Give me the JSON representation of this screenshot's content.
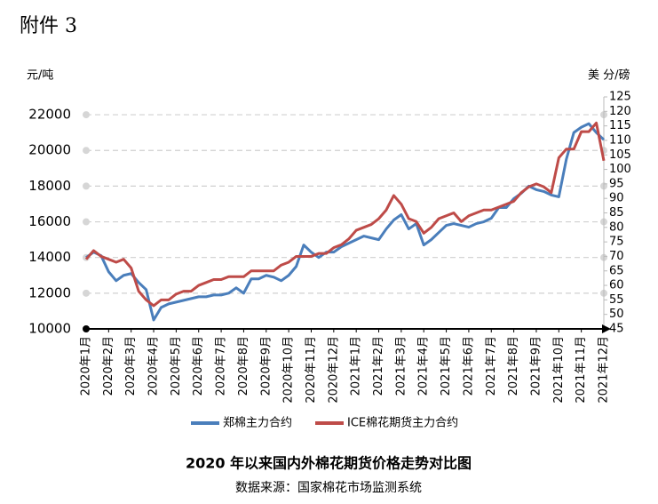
{
  "header": "附件 3",
  "chart_data": {
    "type": "line",
    "title": "2020 年以来国内外棉花期货价格走势对比图",
    "source": "数据来源：国家棉花市场监测系统",
    "y_label": "元/吨",
    "y2_label": "美 分/磅",
    "categories": [
      "2020年1月",
      null,
      null,
      "2020年2月",
      null,
      null,
      "2020年3月",
      null,
      null,
      "2020年4月",
      null,
      null,
      "2020年5月",
      null,
      null,
      "2020年6月",
      null,
      null,
      "2020年7月",
      null,
      null,
      "2020年8月",
      null,
      null,
      "2020年9月",
      null,
      null,
      "2020年10月",
      null,
      null,
      "2020年11月",
      null,
      null,
      "2020年12月",
      null,
      null,
      "2021年1月",
      null,
      null,
      "2021年2月",
      null,
      null,
      "2021年3月",
      null,
      null,
      "2021年4月",
      null,
      null,
      "2021年5月",
      null,
      null,
      "2021年6月",
      null,
      null,
      "2021年7月",
      null,
      null,
      "2021年8月",
      null,
      null,
      "2021年9月",
      null,
      null,
      "2021年10月",
      null,
      null,
      "2021年11月",
      null,
      null,
      "2021年12月"
    ],
    "series": [
      {
        "name": "郑棉主力合约",
        "color": "#4a7ebb",
        "values": [
          14000,
          14300,
          14100,
          13200,
          12700,
          13000,
          13100,
          12600,
          12200,
          10500,
          11200,
          11400,
          11500,
          11600,
          11700,
          11800,
          11800,
          11900,
          11900,
          12000,
          12300,
          12000,
          12800,
          12800,
          13000,
          12900,
          12700,
          13000,
          13500,
          14700,
          14300,
          14000,
          14300,
          14300,
          14600,
          14800,
          15000,
          15200,
          15100,
          15000,
          15600,
          16100,
          16400,
          15600,
          15900,
          14700,
          15000,
          15400,
          15800,
          15900,
          15800,
          15700,
          15900,
          16000,
          16200,
          16800,
          16800,
          17300,
          17600,
          18000,
          17800,
          17700,
          17500,
          17400,
          19500,
          21000,
          21300,
          21500,
          21000,
          20600
        ]
      },
      {
        "name": "ICE棉花期货主力合约",
        "color": "#be4b48",
        "axis": "y2",
        "values": [
          69,
          72,
          70,
          69,
          68,
          69,
          66,
          58,
          55,
          53,
          55,
          55,
          57,
          58,
          58,
          60,
          61,
          62,
          62,
          63,
          63,
          63,
          65,
          65,
          65,
          65,
          67,
          68,
          70,
          70,
          70,
          71,
          71,
          73,
          74,
          76,
          79,
          80,
          81,
          83,
          86,
          91,
          88,
          83,
          82,
          78,
          80,
          83,
          84,
          85,
          82,
          84,
          85,
          86,
          86,
          87,
          88,
          89,
          92,
          94,
          95,
          94,
          92,
          104,
          107,
          107,
          113,
          113,
          116,
          103
        ]
      }
    ],
    "ylim": [
      10000,
      23000
    ],
    "yticks": [
      10000,
      12000,
      14000,
      16000,
      18000,
      20000,
      22000
    ],
    "y2lim": [
      45,
      125
    ],
    "y2ticks": [
      45,
      50,
      55,
      60,
      65,
      70,
      75,
      80,
      85,
      90,
      95,
      100,
      105,
      110,
      115,
      120,
      125
    ],
    "grid": true,
    "legend": "bottom"
  }
}
